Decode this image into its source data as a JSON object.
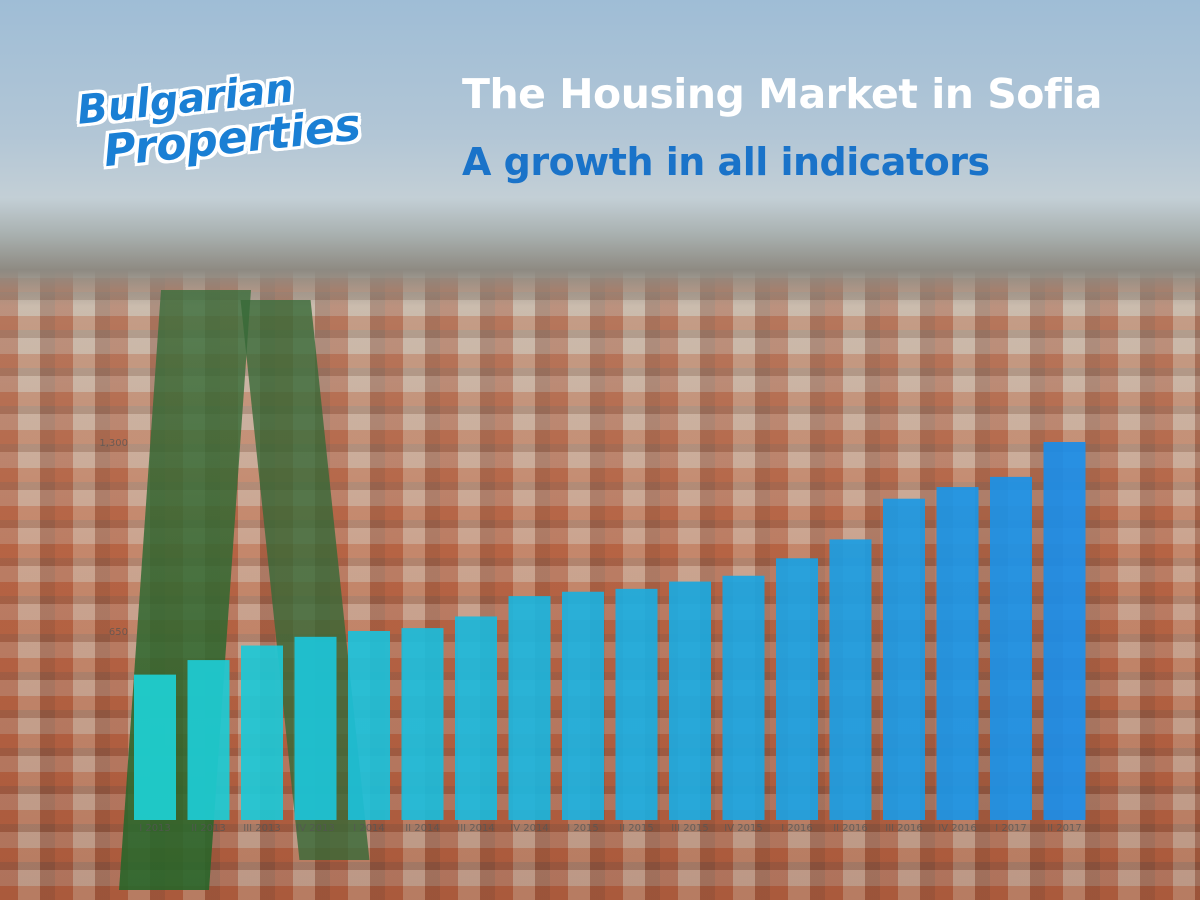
{
  "logo": {
    "line1": "Bulgarian",
    "line2": "Properties"
  },
  "header": {
    "title": "The Housing Market in Sofia",
    "subtitle": "A growth in all indicators"
  },
  "colors": {
    "bar_start": "#1dd0d4",
    "bar_end": "#1a8de8",
    "subtitle": "#1a73c9"
  },
  "chart_data": {
    "type": "bar",
    "categories": [
      "I 2013",
      "II 2013",
      "III 2013",
      "IV 2013",
      "I 2014",
      "II 2014",
      "III 2014",
      "IV 2014",
      "I 2015",
      "II 2015",
      "III 2015",
      "IV 2015",
      "I 2016",
      "II 2016",
      "III 2016",
      "IV 2016",
      "I 2017",
      "II 2017"
    ],
    "values": [
      500,
      550,
      600,
      630,
      650,
      660,
      700,
      770,
      785,
      795,
      820,
      840,
      900,
      965,
      1105,
      1145,
      1180,
      1300
    ],
    "yticks": [
      "650",
      "1,300"
    ],
    "ylim": [
      0,
      1300
    ],
    "grid": false,
    "legend": "none"
  }
}
